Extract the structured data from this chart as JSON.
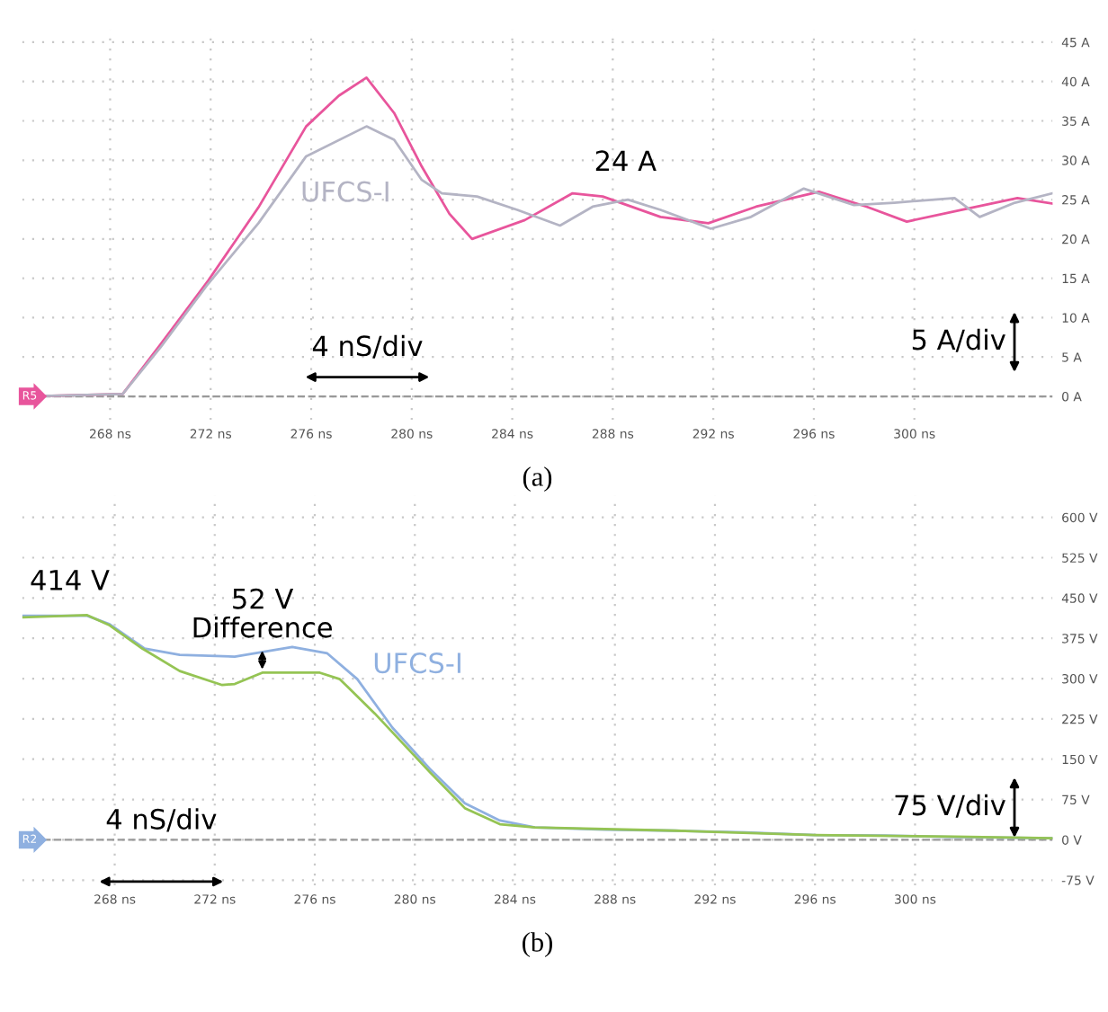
{
  "chart_data": [
    {
      "type": "line",
      "xlim": [
        264.5,
        305.5
      ],
      "ylim": [
        -3,
        46.5
      ],
      "xticks": [
        {
          "value": 268,
          "label": "268 ns"
        },
        {
          "value": 272,
          "label": "272 ns"
        },
        {
          "value": 276,
          "label": "276 ns"
        },
        {
          "value": 280,
          "label": "280 ns"
        },
        {
          "value": 284,
          "label": "284 ns"
        },
        {
          "value": 288,
          "label": "288 ns"
        },
        {
          "value": 292,
          "label": "292 ns"
        },
        {
          "value": 296,
          "label": "296 ns"
        },
        {
          "value": 300,
          "label": "300 ns"
        }
      ],
      "yticks": [
        {
          "value": 0,
          "label": "0 A"
        },
        {
          "value": 5,
          "label": "5 A"
        },
        {
          "value": 10,
          "label": "10 A"
        },
        {
          "value": 15,
          "label": "15 A"
        },
        {
          "value": 20,
          "label": "20 A"
        },
        {
          "value": 25,
          "label": "25 A"
        },
        {
          "value": 30,
          "label": "30 A"
        },
        {
          "value": 35,
          "label": "35 A"
        },
        {
          "value": 40,
          "label": "40 A"
        },
        {
          "value": 45,
          "label": "45 A"
        }
      ],
      "grid": true,
      "marker": "none",
      "line_style": "solid",
      "ref_lines": [
        {
          "axis": "y",
          "value": 0,
          "label": "R5",
          "line_style": "dashed"
        }
      ],
      "series": [
        {
          "color": "#e8559c",
          "x": [
            264.6,
            268.5,
            270.0,
            271.9,
            273.9,
            275.8,
            277.1,
            278.2,
            279.3,
            280.4,
            281.5,
            282.4,
            284.5,
            286.4,
            287.6,
            289.9,
            291.8,
            293.7,
            296.2,
            298.1,
            299.7,
            301.9,
            304.1,
            305.5
          ],
          "values": [
            0,
            0.3,
            6.6,
            14.7,
            24,
            34.3,
            38.2,
            40.5,
            36,
            29.2,
            23.2,
            20,
            22.4,
            25.8,
            25.4,
            22.8,
            22,
            24.1,
            26,
            24.1,
            22.2,
            23.7,
            25.2,
            24.5
          ]
        },
        {
          "name": "UFCS-I",
          "color": "#b4b4c4",
          "x": [
            264.6,
            268.5,
            270.0,
            271.9,
            273.9,
            275.8,
            278.2,
            279.3,
            280.4,
            281.2,
            282.6,
            284.2,
            285.9,
            287.2,
            288.6,
            289.9,
            291.9,
            293.5,
            295.6,
            297.6,
            299.2,
            301.6,
            302.6,
            304.0,
            305.5
          ],
          "values": [
            0,
            0.3,
            6.2,
            14.3,
            22,
            30.5,
            34.3,
            32.6,
            27.5,
            25.8,
            25.4,
            23.7,
            21.7,
            24.1,
            25,
            23.7,
            21.3,
            22.8,
            26.4,
            24.3,
            24.6,
            25.2,
            22.8,
            24.6,
            25.8
          ]
        }
      ],
      "annotations": [
        {
          "text": "24 A",
          "x": 288.5,
          "y": 25.4
        },
        "5 A/div",
        "4 nS/div",
        "(a)"
      ]
    },
    {
      "type": "line",
      "xlim": [
        264.3,
        305.5
      ],
      "ylim": [
        -85,
        640
      ],
      "xticks": [
        {
          "value": 268,
          "label": "268 ns"
        },
        {
          "value": 272,
          "label": "272 ns"
        },
        {
          "value": 276,
          "label": "276 ns"
        },
        {
          "value": 280,
          "label": "280 ns"
        },
        {
          "value": 284,
          "label": "284 ns"
        },
        {
          "value": 288,
          "label": "288 ns"
        },
        {
          "value": 292,
          "label": "292 ns"
        },
        {
          "value": 296,
          "label": "296 ns"
        },
        {
          "value": 300,
          "label": "300 ns"
        }
      ],
      "yticks": [
        {
          "value": -75,
          "label": "-75 V"
        },
        {
          "value": 0,
          "label": "0 V"
        },
        {
          "value": 75,
          "label": "75 V"
        },
        {
          "value": 150,
          "label": "150 V"
        },
        {
          "value": 225,
          "label": "225 V"
        },
        {
          "value": 300,
          "label": "300 V"
        },
        {
          "value": 375,
          "label": "375 V"
        },
        {
          "value": 450,
          "label": "450 V"
        },
        {
          "value": 525,
          "label": "525 V"
        },
        {
          "value": 600,
          "label": "600 V"
        }
      ],
      "grid": true,
      "marker": "none",
      "line_style": "solid",
      "ref_lines": [
        {
          "axis": "y",
          "value": 0,
          "label": "R2",
          "line_style": "dashed"
        }
      ],
      "series": [
        {
          "name": "UFCS-I",
          "color": "#8fb0e0",
          "x": [
            264.35,
            266.9,
            267.8,
            269.2,
            270.6,
            272.8,
            275.1,
            276.5,
            277.7,
            279.1,
            280.6,
            282.0,
            283.4,
            284.8,
            287.6,
            290.4,
            293.2,
            296.0,
            298.8,
            301.6,
            305.5
          ],
          "values": [
            417,
            417,
            401,
            356,
            344,
            341,
            359,
            347,
            299,
            209,
            132,
            68,
            36,
            23,
            19,
            17,
            14,
            9,
            8,
            5,
            3
          ]
        },
        {
          "color": "#95c454",
          "x": [
            264.35,
            266.9,
            267.8,
            269.1,
            270.6,
            272.3,
            272.8,
            273.9,
            276.2,
            277.0,
            278.4,
            280.6,
            282.0,
            283.4,
            284.8,
            290.4,
            296.0,
            301.6,
            305.5
          ],
          "values": [
            414,
            418,
            399,
            356,
            314,
            288,
            290,
            311,
            311,
            299,
            235,
            126,
            59,
            29,
            23,
            17,
            9,
            6,
            3
          ]
        }
      ],
      "annotations": [
        {
          "text": "414 V",
          "x": 266.2,
          "y": 417
        },
        {
          "text": "52 V\nDifference",
          "x": 273.9,
          "y": 336
        },
        "75 V/div",
        "4 nS/div",
        "(b)"
      ]
    }
  ]
}
